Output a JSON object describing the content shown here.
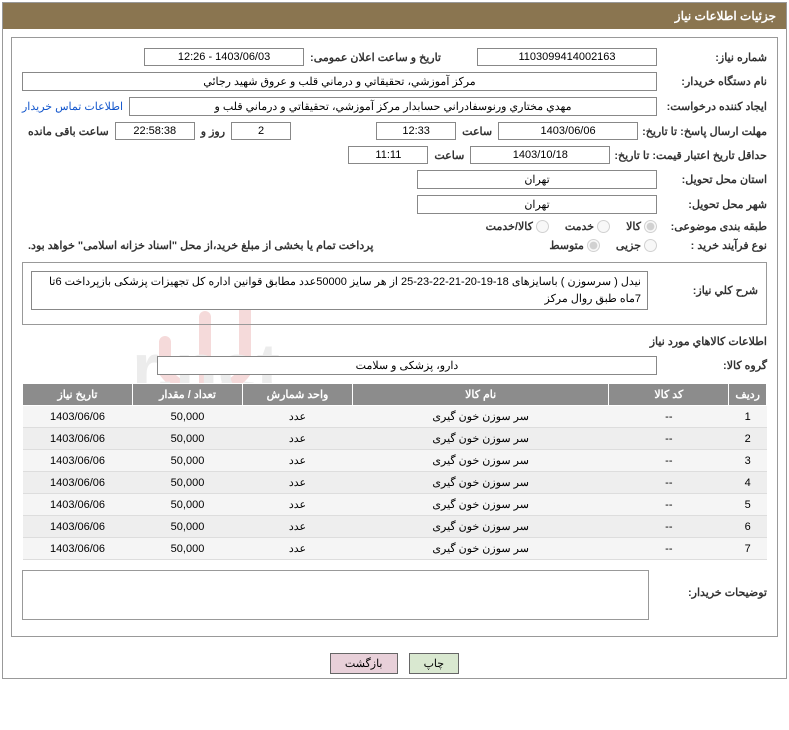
{
  "title": "جزئیات اطلاعات نیاز",
  "labels": {
    "need_no": "شماره نیاز:",
    "announce_dt": "تاریخ و ساعت اعلان عمومی:",
    "buyer_org": "نام دستگاه خریدار:",
    "requester": "ایجاد کننده درخواست:",
    "contact_link": "اطلاعات تماس خریدار",
    "reply_deadline": "مهلت ارسال پاسخ: تا تاریخ:",
    "time_word": "ساعت",
    "days_and": "روز و",
    "remaining": "ساعت باقی مانده",
    "price_validity": "حداقل تاریخ اعتبار قیمت: تا تاریخ:",
    "delivery_province": "استان محل تحویل:",
    "delivery_city": "شهر محل تحویل:",
    "category": "طبقه بندی موضوعی:",
    "purchase_type": "نوع فرآیند خرید :",
    "payment_note": "پرداخت تمام یا بخشی از مبلغ خرید،از محل \"اسناد خزانه اسلامی\" خواهد بود.",
    "overall_desc": "شرح کلي نياز:",
    "goods_info_title": "اطلاعات كالاهاي مورد نياز",
    "goods_group": "گروه کالا:",
    "buyer_notes": "توضیحات خریدار:"
  },
  "values": {
    "need_no": "1103099414002163",
    "announce_dt": "1403/06/03 - 12:26",
    "buyer_org": "مرکز آموزشي، تحقیقاتي و درماني قلب و عروق شهید رجائي",
    "requester": "مهدي مختاري ورنوسفادراني حسابدار مرکز آموزشي، تحقیقاتي و درماني قلب و",
    "reply_date": "1403/06/06",
    "reply_time": "12:33",
    "days_left": "2",
    "time_left": "22:58:38",
    "price_date": "1403/10/18",
    "price_time": "11:11",
    "province": "تهران",
    "city": "تهران",
    "overall_desc": "نیدل ( سرسوزن ) باسایزهای 18-19-20-21-22-23-25 از هر سایز 50000عدد مطابق قوانین اداره کل تجهیزات پزشکی بازپرداخت 6تا 7ماه طبق روال مرکز",
    "goods_group": "دارو، پزشکی و سلامت"
  },
  "radios": {
    "category": {
      "options": [
        "کالا",
        "خدمت",
        "کالا/خدمت"
      ],
      "selected": 0
    },
    "purchase_type": {
      "options": [
        "جزیی",
        "متوسط"
      ],
      "selected": 1
    }
  },
  "table": {
    "headers": [
      "ردیف",
      "کد کالا",
      "نام کالا",
      "واحد شمارش",
      "تعداد / مقدار",
      "تاریخ نیاز"
    ],
    "rows": [
      [
        "1",
        "--",
        "سر سوزن خون گیری",
        "عدد",
        "50,000",
        "1403/06/06"
      ],
      [
        "2",
        "--",
        "سر سوزن خون گیری",
        "عدد",
        "50,000",
        "1403/06/06"
      ],
      [
        "3",
        "--",
        "سر سوزن خون گیری",
        "عدد",
        "50,000",
        "1403/06/06"
      ],
      [
        "4",
        "--",
        "سر سوزن خون گیری",
        "عدد",
        "50,000",
        "1403/06/06"
      ],
      [
        "5",
        "--",
        "سر سوزن خون گیری",
        "عدد",
        "50,000",
        "1403/06/06"
      ],
      [
        "6",
        "--",
        "سر سوزن خون گیری",
        "عدد",
        "50,000",
        "1403/06/06"
      ],
      [
        "7",
        "--",
        "سر سوزن خون گیری",
        "عدد",
        "50,000",
        "1403/06/06"
      ]
    ]
  },
  "buttons": {
    "print": "چاپ",
    "back": "بازگشت"
  },
  "watermark": {
    "color": "#c93838",
    "stroke_width": 12
  }
}
